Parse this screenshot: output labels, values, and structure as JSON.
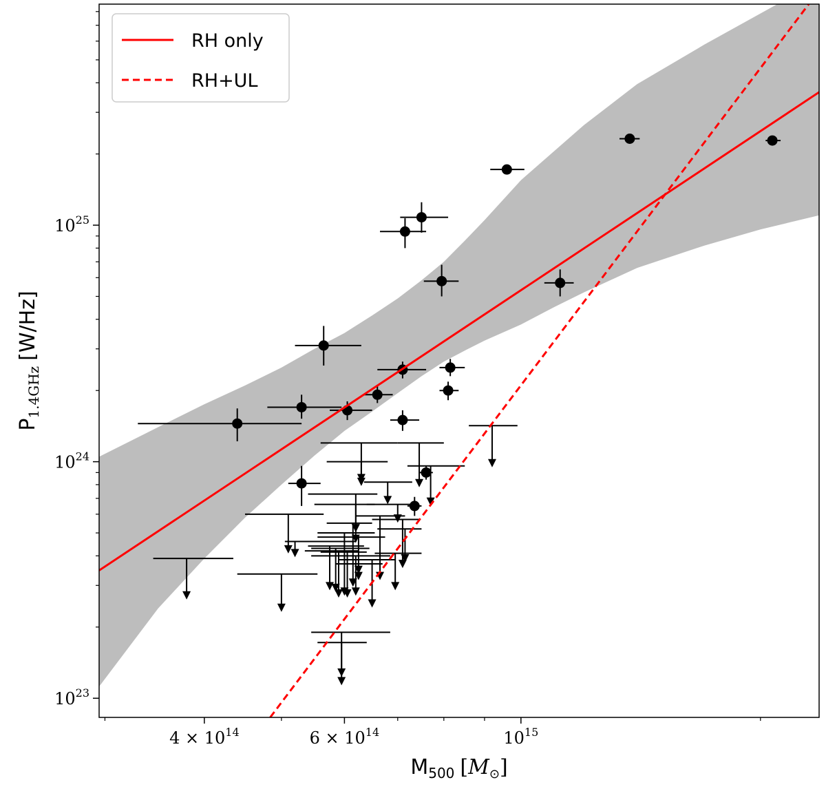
{
  "chart_data": {
    "type": "scatter",
    "title": "",
    "x_scale": "log",
    "y_scale": "log",
    "xlim": [
      295000000000000.0,
      2370000000000000.0
    ],
    "ylim": [
      8.3e+22,
      8.6e+25
    ],
    "xlabel": {
      "main": "M",
      "sub": "500",
      "unit_open": "[",
      "unit_main": "M",
      "unit_sub": "⊙",
      "unit_close": "]"
    },
    "ylabel": {
      "main": "P",
      "sub": "1.4GHz",
      "unit": "[W/Hz]"
    },
    "x_ticks": [
      {
        "value": 400000000000000.0,
        "mantissa": "4 × 10",
        "exp": "14"
      },
      {
        "value": 600000000000000.0,
        "mantissa": "6 × 10",
        "exp": "14"
      },
      {
        "value": 1000000000000000.0,
        "mantissa": "10",
        "exp": "15"
      }
    ],
    "x_minor_ticks": [
      300000000000000.0,
      500000000000000.0,
      700000000000000.0,
      800000000000000.0,
      900000000000000.0,
      2000000000000000.0
    ],
    "y_ticks": [
      {
        "value": 1e+23,
        "mantissa": "10",
        "exp": "23"
      },
      {
        "value": 1e+24,
        "mantissa": "10",
        "exp": "24"
      },
      {
        "value": 1e+25,
        "mantissa": "10",
        "exp": "25"
      }
    ],
    "y_minor_ticks": [
      2e+23,
      3e+23,
      4e+23,
      5e+23,
      6e+23,
      7e+23,
      8e+23,
      9e+23,
      2e+24,
      3e+24,
      4e+24,
      5e+24,
      6e+24,
      7e+24,
      8e+24,
      9e+24,
      2e+25,
      3e+25,
      4e+25,
      5e+25,
      6e+25,
      7e+25,
      8e+25
    ],
    "legend": {
      "position": "top-left",
      "entries": [
        {
          "label": "RH only",
          "style": "solid",
          "color": "#ff0000"
        },
        {
          "label": "RH+UL",
          "style": "dashed",
          "color": "#ff0000"
        }
      ]
    },
    "fit_lines": [
      {
        "name": "RH only",
        "style": "solid",
        "color": "#ff0000",
        "points": [
          [
            295000000000000.0,
            3.47e+23
          ],
          [
            2370000000000000.0,
            3.65e+25
          ]
        ]
      },
      {
        "name": "RH+UL",
        "style": "dashed",
        "color": "#ff0000",
        "points": [
          [
            484000000000000.0,
            8.3e+22
          ],
          [
            2300000000000000.0,
            8.6e+25
          ]
        ]
      }
    ],
    "confidence_band": {
      "color": "#bdbdbd",
      "upper": [
        [
          295000000000000.0,
          1.05e+24
        ],
        [
          350000000000000.0,
          1.4e+24
        ],
        [
          400000000000000.0,
          1.75e+24
        ],
        [
          450000000000000.0,
          2.1e+24
        ],
        [
          500000000000000.0,
          2.5e+24
        ],
        [
          550000000000000.0,
          3e+24
        ],
        [
          600000000000000.0,
          3.5e+24
        ],
        [
          650000000000000.0,
          4.15e+24
        ],
        [
          700000000000000.0,
          4.9e+24
        ],
        [
          750000000000000.0,
          5.85e+24
        ],
        [
          800000000000000.0,
          7e+24
        ],
        [
          850000000000000.0,
          8.6e+24
        ],
        [
          900000000000000.0,
          1.05e+25
        ],
        [
          1000000000000000.0,
          1.55e+25
        ],
        [
          1200000000000000.0,
          2.65e+25
        ],
        [
          1400000000000000.0,
          3.95e+25
        ],
        [
          1700000000000000.0,
          5.8e+25
        ],
        [
          2100000000000000.0,
          8.6e+25
        ],
        [
          2370000000000000.0,
          8.6e+25
        ]
      ],
      "lower": [
        [
          295000000000000.0,
          1.12e+23
        ],
        [
          350000000000000.0,
          2.4e+23
        ],
        [
          400000000000000.0,
          3.9e+23
        ],
        [
          450000000000000.0,
          5.8e+23
        ],
        [
          500000000000000.0,
          8e+23
        ],
        [
          550000000000000.0,
          1.06e+24
        ],
        [
          600000000000000.0,
          1.35e+24
        ],
        [
          650000000000000.0,
          1.63e+24
        ],
        [
          700000000000000.0,
          1.95e+24
        ],
        [
          750000000000000.0,
          2.3e+24
        ],
        [
          800000000000000.0,
          2.65e+24
        ],
        [
          850000000000000.0,
          2.95e+24
        ],
        [
          900000000000000.0,
          3.25e+24
        ],
        [
          1000000000000000.0,
          3.8e+24
        ],
        [
          1100000000000000.0,
          4.5e+24
        ],
        [
          1200000000000000.0,
          5.2e+24
        ],
        [
          1400000000000000.0,
          6.6e+24
        ],
        [
          1700000000000000.0,
          8.2e+24
        ],
        [
          2000000000000000.0,
          9.6e+24
        ],
        [
          2370000000000000.0,
          1.1e+25
        ]
      ]
    },
    "detections": [
      {
        "x": 440000000000000.0,
        "y": 1.45e+24,
        "xlo": 330000000000000.0,
        "xhi": 530000000000000.0,
        "ylo": 1.22e+24,
        "yhi": 1.68e+24
      },
      {
        "x": 530000000000000.0,
        "y": 8.1e+23,
        "xlo": 510000000000000.0,
        "xhi": 560000000000000.0,
        "ylo": 6.5e+23,
        "yhi": 9.6e+23
      },
      {
        "x": 530000000000000.0,
        "y": 1.7e+24,
        "xlo": 480000000000000.0,
        "xhi": 595000000000000.0,
        "ylo": 1.52e+24,
        "yhi": 1.92e+24
      },
      {
        "x": 565000000000000.0,
        "y": 3.1e+24,
        "xlo": 520000000000000.0,
        "xhi": 630000000000000.0,
        "ylo": 2.55e+24,
        "yhi": 3.75e+24
      },
      {
        "x": 605000000000000.0,
        "y": 1.65e+24,
        "xlo": 575000000000000.0,
        "xhi": 650000000000000.0,
        "ylo": 1.5e+24,
        "yhi": 1.8e+24
      },
      {
        "x": 660000000000000.0,
        "y": 1.92e+24,
        "xlo": 635000000000000.0,
        "xhi": 690000000000000.0,
        "ylo": 1.77e+24,
        "yhi": 2.1e+24
      },
      {
        "x": 710000000000000.0,
        "y": 2.45e+24,
        "xlo": 660000000000000.0,
        "xhi": 760000000000000.0,
        "ylo": 2.25e+24,
        "yhi": 2.65e+24
      },
      {
        "x": 710000000000000.0,
        "y": 1.5e+24,
        "xlo": 685000000000000.0,
        "xhi": 745000000000000.0,
        "ylo": 1.35e+24,
        "yhi": 1.65e+24
      },
      {
        "x": 715000000000000.0,
        "y": 9.4e+24,
        "xlo": 665000000000000.0,
        "xhi": 760000000000000.0,
        "ylo": 8e+24,
        "yhi": 1.07e+25
      },
      {
        "x": 750000000000000.0,
        "y": 1.08e+25,
        "xlo": 705000000000000.0,
        "xhi": 810000000000000.0,
        "ylo": 9.3e+24,
        "yhi": 1.25e+25
      },
      {
        "x": 735000000000000.0,
        "y": 6.5e+23,
        "xlo": 720000000000000.0,
        "xhi": 750000000000000.0,
        "ylo": 5.9e+23,
        "yhi": 7.1e+23
      },
      {
        "x": 760000000000000.0,
        "y": 9e+23,
        "xlo": 745000000000000.0,
        "xhi": 775000000000000.0,
        "ylo": 8.4e+23,
        "yhi": 9.6e+23
      },
      {
        "x": 795000000000000.0,
        "y": 5.8e+24,
        "xlo": 755000000000000.0,
        "xhi": 835000000000000.0,
        "ylo": 5e+24,
        "yhi": 6.8e+24
      },
      {
        "x": 810000000000000.0,
        "y": 2e+24,
        "xlo": 790000000000000.0,
        "xhi": 835000000000000.0,
        "ylo": 1.82e+24,
        "yhi": 2.18e+24
      },
      {
        "x": 815000000000000.0,
        "y": 2.5e+24,
        "xlo": 790000000000000.0,
        "xhi": 850000000000000.0,
        "ylo": 2.3e+24,
        "yhi": 2.72e+24
      },
      {
        "x": 960000000000000.0,
        "y": 1.72e+25,
        "xlo": 915000000000000.0,
        "xhi": 1010000000000000.0,
        "ylo": 1.67e+25,
        "yhi": 1.77e+25
      },
      {
        "x": 1120000000000000.0,
        "y": 5.7e+24,
        "xlo": 1070000000000000.0,
        "xhi": 1165000000000000.0,
        "ylo": 5e+24,
        "yhi": 6.5e+24
      },
      {
        "x": 1370000000000000.0,
        "y": 2.32e+25,
        "xlo": 1330000000000000.0,
        "xhi": 1410000000000000.0,
        "ylo": 2.22e+25,
        "yhi": 2.42e+25
      },
      {
        "x": 2070000000000000.0,
        "y": 2.28e+25,
        "xlo": 2030000000000000.0,
        "xhi": 2120000000000000.0,
        "ylo": 2.2e+25,
        "yhi": 2.36e+25
      }
    ],
    "upper_limits": [
      {
        "x": 380000000000000.0,
        "y": 3.9e+23,
        "xlo": 345000000000000.0,
        "xhi": 435000000000000.0,
        "arrow_to": 2.65e+23
      },
      {
        "x": 500000000000000.0,
        "y": 3.35e+23,
        "xlo": 440000000000000.0,
        "xhi": 555000000000000.0,
        "arrow_to": 2.35e+23
      },
      {
        "x": 595000000000000.0,
        "y": 1.9e+23,
        "xlo": 545000000000000.0,
        "xhi": 685000000000000.0,
        "arrow_to": 1.25e+23
      },
      {
        "x": 595000000000000.0,
        "y": 1.72e+23,
        "xlo": 555000000000000.0,
        "xhi": 640000000000000.0,
        "arrow_to": 1.15e+23
      },
      {
        "x": 510000000000000.0,
        "y": 6e+23,
        "xlo": 450000000000000.0,
        "xhi": 565000000000000.0,
        "arrow_to": 4.15e+23
      },
      {
        "x": 520000000000000.0,
        "y": 4.6e+23,
        "xlo": 505000000000000.0,
        "xhi": 620000000000000.0,
        "arrow_to": 4e+23
      },
      {
        "x": 575000000000000.0,
        "y": 4.4e+23,
        "xlo": 540000000000000.0,
        "xhi": 635000000000000.0,
        "arrow_to": 2.9e+23
      },
      {
        "x": 585000000000000.0,
        "y": 4.3e+23,
        "xlo": 545000000000000.0,
        "xhi": 645000000000000.0,
        "arrow_to": 2.85e+23
      },
      {
        "x": 590000000000000.0,
        "y": 4.2e+23,
        "xlo": 535000000000000.0,
        "xhi": 625000000000000.0,
        "arrow_to": 2.7e+23
      },
      {
        "x": 600000000000000.0,
        "y": 5e+23,
        "xlo": 555000000000000.0,
        "xhi": 655000000000000.0,
        "arrow_to": 2.75e+23
      },
      {
        "x": 605000000000000.0,
        "y": 4.15e+23,
        "xlo": 560000000000000.0,
        "xhi": 640000000000000.0,
        "arrow_to": 2.7e+23
      },
      {
        "x": 615000000000000.0,
        "y": 5.5e+23,
        "xlo": 570000000000000.0,
        "xhi": 650000000000000.0,
        "arrow_to": 3e+23
      },
      {
        "x": 620000000000000.0,
        "y": 4e+23,
        "xlo": 545000000000000.0,
        "xhi": 685000000000000.0,
        "arrow_to": 2.75e+23
      },
      {
        "x": 620000000000000.0,
        "y": 6.6e+23,
        "xlo": 550000000000000.0,
        "xhi": 655000000000000.0,
        "arrow_to": 4.6e+23
      },
      {
        "x": 625000000000000.0,
        "y": 3.7e+23,
        "xlo": 585000000000000.0,
        "xhi": 670000000000000.0,
        "arrow_to": 3.2e+23
      },
      {
        "x": 620000000000000.0,
        "y": 7.3e+23,
        "xlo": 540000000000000.0,
        "xhi": 660000000000000.0,
        "arrow_to": 5.1e+23
      },
      {
        "x": 625000000000000.0,
        "y": 4.8e+23,
        "xlo": 555000000000000.0,
        "xhi": 675000000000000.0,
        "arrow_to": 3.4e+23
      },
      {
        "x": 630000000000000.0,
        "y": 1e+24,
        "xlo": 570000000000000.0,
        "xhi": 680000000000000.0,
        "arrow_to": 8e+23
      },
      {
        "x": 630000000000000.0,
        "y": 1.2e+24,
        "xlo": 560000000000000.0,
        "xhi": 700000000000000.0,
        "arrow_to": 8.3e+23
      },
      {
        "x": 650000000000000.0,
        "y": 3.85e+23,
        "xlo": 590000000000000.0,
        "xhi": 695000000000000.0,
        "arrow_to": 2.45e+23
      },
      {
        "x": 665000000000000.0,
        "y": 5.9e+23,
        "xlo": 620000000000000.0,
        "xhi": 715000000000000.0,
        "arrow_to": 3.2e+23
      },
      {
        "x": 680000000000000.0,
        "y": 8.2e+23,
        "xlo": 635000000000000.0,
        "xhi": 730000000000000.0,
        "arrow_to": 6.7e+23
      },
      {
        "x": 695000000000000.0,
        "y": 4.1e+23,
        "xlo": 655000000000000.0,
        "xhi": 750000000000000.0,
        "arrow_to": 2.9e+23
      },
      {
        "x": 700000000000000.0,
        "y": 6.6e+23,
        "xlo": 640000000000000.0,
        "xhi": 735000000000000.0,
        "arrow_to": 5.6e+23
      },
      {
        "x": 710000000000000.0,
        "y": 5.7e+23,
        "xlo": 650000000000000.0,
        "xhi": 745000000000000.0,
        "arrow_to": 3.6e+23
      },
      {
        "x": 715000000000000.0,
        "y": 5.2e+23,
        "xlo": 660000000000000.0,
        "xhi": 750000000000000.0,
        "arrow_to": 3.8e+23
      },
      {
        "x": 745000000000000.0,
        "y": 1.2e+24,
        "xlo": 700000000000000.0,
        "xhi": 800000000000000.0,
        "arrow_to": 7.9e+23
      },
      {
        "x": 770000000000000.0,
        "y": 9.6e+23,
        "xlo": 720000000000000.0,
        "xhi": 850000000000000.0,
        "arrow_to": 6.6e+23
      },
      {
        "x": 920000000000000.0,
        "y": 1.42e+24,
        "xlo": 860000000000000.0,
        "xhi": 990000000000000.0,
        "arrow_to": 9.6e+23
      }
    ]
  }
}
